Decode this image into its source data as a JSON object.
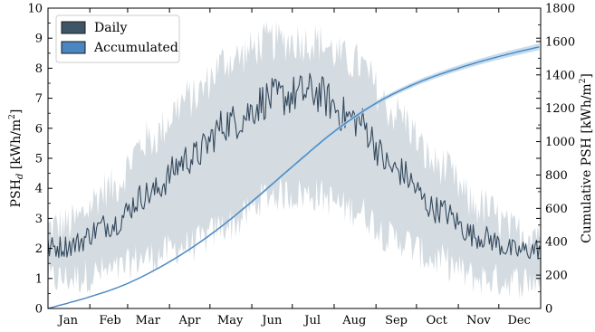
{
  "chart_data": {
    "type": "line",
    "x_axis": {
      "tick_labels": [
        "Jan",
        "Feb",
        "Mar",
        "Apr",
        "May",
        "Jun",
        "Jul",
        "Aug",
        "Sep",
        "Oct",
        "Nov",
        "Dec"
      ],
      "range_days": [
        0,
        365
      ]
    },
    "y_left": {
      "label": "PSH_d [kWh/m^2]",
      "label_main": "PSH",
      "label_sub": "d",
      "label_unit": "[kWh/m",
      "label_sup": "2",
      "label_end": "]",
      "range": [
        0,
        10
      ],
      "ticks": [
        0,
        1,
        2,
        3,
        4,
        5,
        6,
        7,
        8,
        9,
        10
      ]
    },
    "y_right": {
      "label": "Cumulative PSH [kWh/m^2]",
      "label_main": "Cumulative PSH",
      "label_unit": "[kWh/m",
      "label_sup": "2",
      "label_end": "]",
      "range": [
        0,
        1800
      ],
      "ticks": [
        0,
        200,
        400,
        600,
        800,
        1000,
        1200,
        1400,
        1600,
        1800
      ]
    },
    "legend": {
      "position": "top-left",
      "entries": [
        "Daily",
        "Accumulated"
      ]
    },
    "colors": {
      "daily": "#34495e",
      "daily_band": "#d5dce1",
      "accumulated": "#4a86c0",
      "accumulated_band": "#b8d4ea"
    },
    "series": [
      {
        "name": "Daily",
        "axis": "left",
        "x_month_mid": [
          15,
          46,
          74,
          105,
          135,
          166,
          196,
          227,
          258,
          288,
          319,
          349
        ],
        "monthly_mean": [
          2.1,
          2.8,
          3.8,
          5.0,
          6.2,
          7.0,
          7.2,
          6.3,
          4.6,
          3.3,
          2.4,
          1.9
        ],
        "band_upper": [
          2.8,
          4.0,
          5.6,
          7.0,
          8.3,
          8.9,
          8.9,
          8.2,
          6.5,
          4.8,
          3.4,
          2.5
        ],
        "band_lower": [
          1.0,
          1.2,
          1.7,
          2.1,
          2.8,
          3.8,
          3.8,
          3.3,
          2.3,
          1.6,
          1.0,
          0.9
        ]
      },
      {
        "name": "Accumulated",
        "axis": "right",
        "x_day": [
          0,
          31,
          59,
          90,
          120,
          151,
          181,
          212,
          243,
          273,
          304,
          334,
          365
        ],
        "values": [
          0,
          70,
          150,
          280,
          440,
          640,
          850,
          1060,
          1230,
          1350,
          1440,
          1510,
          1570
        ],
        "band_halfwidth": 20
      }
    ]
  }
}
